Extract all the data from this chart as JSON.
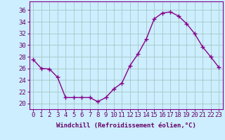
{
  "x": [
    0,
    1,
    2,
    3,
    4,
    5,
    6,
    7,
    8,
    9,
    10,
    11,
    12,
    13,
    14,
    15,
    16,
    17,
    18,
    19,
    20,
    21,
    22,
    23
  ],
  "y": [
    27.5,
    26.0,
    25.9,
    24.5,
    21.0,
    21.0,
    21.0,
    21.0,
    20.3,
    21.0,
    22.5,
    23.5,
    26.5,
    28.5,
    31.0,
    34.5,
    35.5,
    35.7,
    35.0,
    33.7,
    32.0,
    29.7,
    28.0,
    26.2
  ],
  "line_color": "#880088",
  "marker": "+",
  "marker_size": 4,
  "marker_linewidth": 1.0,
  "bg_color": "#cceeff",
  "grid_color": "#aacccc",
  "xlabel": "Windchill (Refroidissement éolien,°C)",
  "ytick_labels": [
    "20",
    "22",
    "24",
    "26",
    "28",
    "30",
    "32",
    "34",
    "36"
  ],
  "ytick_values": [
    20,
    22,
    24,
    26,
    28,
    30,
    32,
    34,
    36
  ],
  "ylim": [
    19.0,
    37.5
  ],
  "xlim": [
    -0.5,
    23.5
  ],
  "xlabel_fontsize": 6.5,
  "tick_fontsize": 6.5,
  "linewidth": 1.0
}
